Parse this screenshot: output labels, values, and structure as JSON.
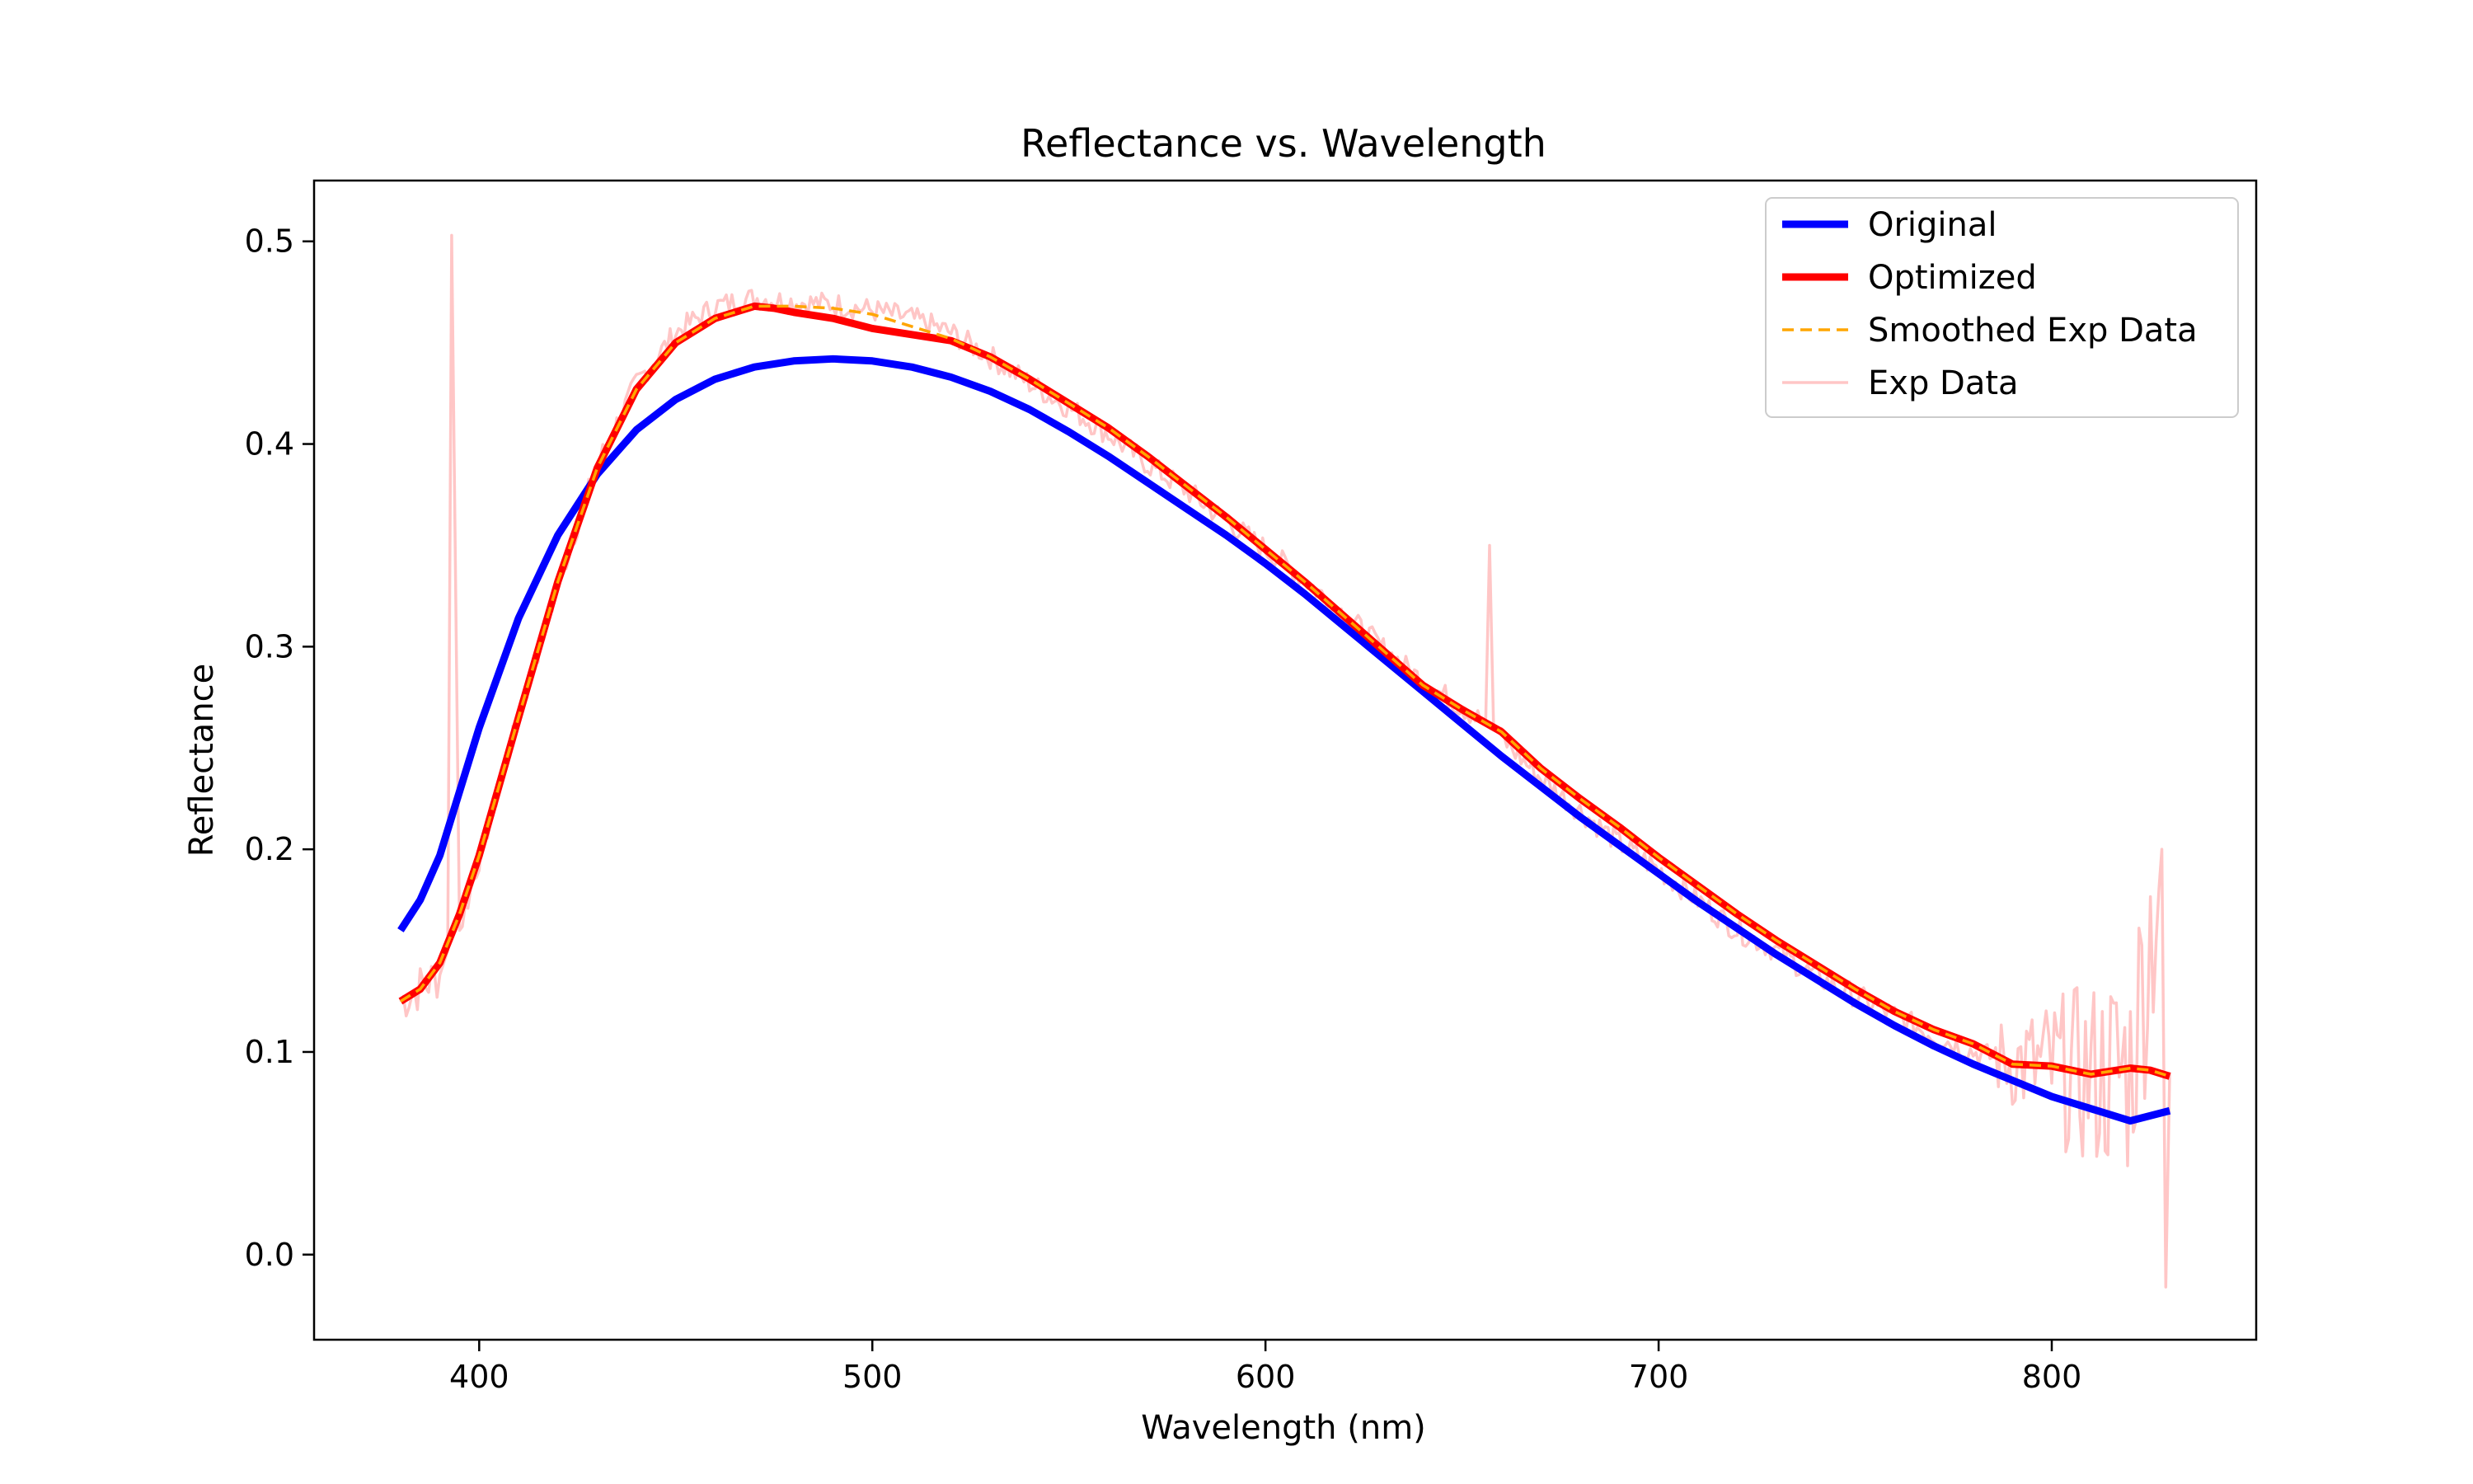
{
  "chart_data": {
    "type": "line",
    "title": "Reflectance vs. Wavelength",
    "xlabel": "Wavelength (nm)",
    "ylabel": "Reflectance",
    "xlim": [
      358,
      852
    ],
    "ylim": [
      -0.042,
      0.53
    ],
    "xticks": [
      400,
      500,
      600,
      700,
      800
    ],
    "yticks": [
      0.0,
      0.1,
      0.2,
      0.3,
      0.4,
      0.5
    ],
    "ytick_labels": [
      "0.0",
      "0.1",
      "0.2",
      "0.3",
      "0.4",
      "0.5"
    ],
    "grid": false,
    "legend_position": "top-right",
    "series": [
      {
        "name": "Exp Data",
        "color": "#ffc6c6",
        "style": "noisy",
        "x": [
          380,
          385,
          390,
          392,
          393,
          395,
          400,
          410,
          420,
          430,
          440,
          450,
          460,
          470,
          480,
          490,
          500,
          510,
          520,
          530,
          540,
          550,
          560,
          570,
          580,
          590,
          600,
          610,
          620,
          630,
          640,
          650,
          656,
          657,
          658,
          660,
          670,
          680,
          690,
          700,
          710,
          720,
          730,
          740,
          750,
          760,
          770,
          780,
          790,
          800,
          810,
          820,
          828,
          829,
          830
        ],
        "y": [
          0.125,
          0.132,
          0.138,
          0.15,
          0.503,
          0.16,
          0.195,
          0.265,
          0.33,
          0.39,
          0.43,
          0.455,
          0.468,
          0.472,
          0.47,
          0.469,
          0.466,
          0.462,
          0.455,
          0.443,
          0.43,
          0.418,
          0.405,
          0.39,
          0.377,
          0.362,
          0.348,
          0.333,
          0.316,
          0.299,
          0.283,
          0.27,
          0.262,
          0.35,
          0.262,
          0.255,
          0.235,
          0.219,
          0.203,
          0.19,
          0.175,
          0.16,
          0.15,
          0.137,
          0.128,
          0.118,
          0.108,
          0.1,
          0.095,
          0.092,
          0.088,
          0.092,
          0.2,
          -0.016,
          0.09
        ]
      },
      {
        "name": "Original",
        "color": "#0000ff",
        "x": [
          380,
          385,
          390,
          400,
          410,
          420,
          430,
          440,
          450,
          460,
          470,
          480,
          490,
          500,
          510,
          520,
          530,
          540,
          550,
          560,
          570,
          580,
          590,
          600,
          610,
          620,
          630,
          640,
          650,
          660,
          670,
          680,
          690,
          700,
          710,
          720,
          730,
          740,
          750,
          760,
          770,
          780,
          790,
          800,
          810,
          820,
          830
        ],
        "y": [
          0.16,
          0.175,
          0.197,
          0.26,
          0.314,
          0.355,
          0.385,
          0.407,
          0.422,
          0.432,
          0.438,
          0.441,
          0.442,
          0.441,
          0.438,
          0.433,
          0.426,
          0.417,
          0.406,
          0.394,
          0.381,
          0.368,
          0.355,
          0.341,
          0.326,
          0.31,
          0.294,
          0.278,
          0.262,
          0.246,
          0.231,
          0.216,
          0.202,
          0.188,
          0.174,
          0.161,
          0.148,
          0.136,
          0.124,
          0.113,
          0.103,
          0.094,
          0.086,
          0.078,
          0.072,
          0.066,
          0.071
        ]
      },
      {
        "name": "Optimized",
        "color": "#ff0000",
        "x": [
          380,
          385,
          390,
          395,
          400,
          410,
          420,
          430,
          440,
          450,
          460,
          470,
          475,
          480,
          490,
          500,
          510,
          520,
          530,
          540,
          550,
          560,
          570,
          580,
          590,
          600,
          610,
          620,
          630,
          640,
          650,
          660,
          670,
          680,
          690,
          700,
          710,
          720,
          730,
          740,
          750,
          760,
          770,
          780,
          790,
          800,
          810,
          820,
          825,
          830
        ],
        "y": [
          0.125,
          0.131,
          0.144,
          0.168,
          0.197,
          0.265,
          0.332,
          0.388,
          0.427,
          0.45,
          0.462,
          0.468,
          0.467,
          0.465,
          0.462,
          0.457,
          0.454,
          0.451,
          0.443,
          0.432,
          0.42,
          0.408,
          0.394,
          0.379,
          0.364,
          0.348,
          0.332,
          0.315,
          0.298,
          0.281,
          0.269,
          0.258,
          0.24,
          0.225,
          0.211,
          0.196,
          0.182,
          0.168,
          0.155,
          0.143,
          0.131,
          0.12,
          0.111,
          0.104,
          0.094,
          0.093,
          0.089,
          0.092,
          0.091,
          0.088
        ]
      },
      {
        "name": "Smoothed Exp Data",
        "color": "#ffa500",
        "x": [
          380,
          385,
          390,
          395,
          400,
          410,
          420,
          430,
          440,
          450,
          460,
          470,
          480,
          490,
          500,
          510,
          520,
          530,
          540,
          550,
          560,
          570,
          580,
          590,
          600,
          610,
          620,
          630,
          640,
          650,
          660,
          670,
          680,
          690,
          700,
          710,
          720,
          730,
          740,
          750,
          760,
          770,
          780,
          790,
          800,
          810,
          820,
          825,
          830
        ],
        "y": [
          0.125,
          0.131,
          0.144,
          0.168,
          0.197,
          0.265,
          0.332,
          0.388,
          0.427,
          0.45,
          0.462,
          0.468,
          0.468,
          0.467,
          0.464,
          0.458,
          0.452,
          0.443,
          0.432,
          0.42,
          0.408,
          0.394,
          0.379,
          0.364,
          0.348,
          0.332,
          0.315,
          0.298,
          0.281,
          0.269,
          0.258,
          0.24,
          0.225,
          0.211,
          0.196,
          0.182,
          0.168,
          0.155,
          0.143,
          0.131,
          0.12,
          0.111,
          0.104,
          0.094,
          0.093,
          0.089,
          0.092,
          0.091,
          0.088
        ]
      }
    ],
    "legend": [
      {
        "label": "Original",
        "color": "#0000ff",
        "style": "solid-thick"
      },
      {
        "label": "Optimized",
        "color": "#ff0000",
        "style": "solid-thick"
      },
      {
        "label": "Smoothed Exp Data",
        "color": "#ffa500",
        "style": "dashed"
      },
      {
        "label": "Exp Data",
        "color": "#ffc6c6",
        "style": "solid-thin"
      }
    ]
  }
}
